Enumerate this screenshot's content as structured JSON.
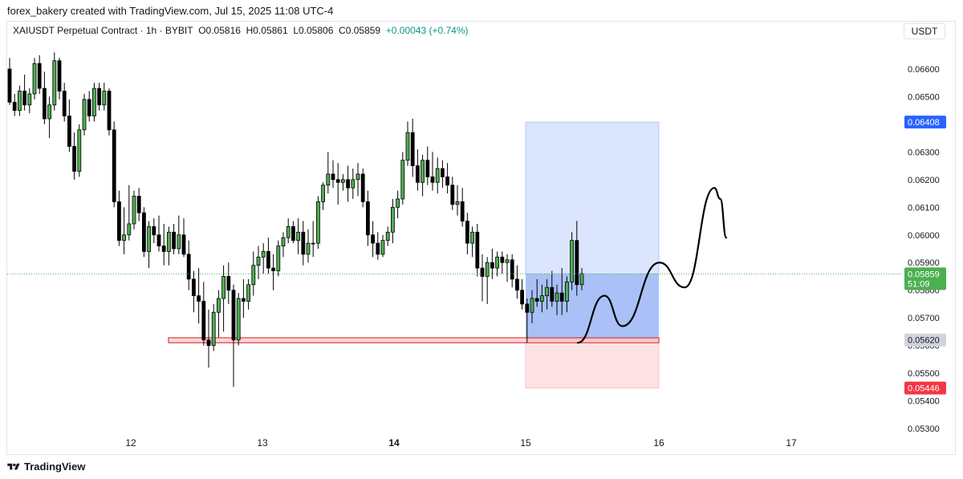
{
  "caption": "forex_bakery created with TradingView.com, Jul 15, 2025 11:08 UTC-4",
  "legend": {
    "symbol": "XAIUSDT Perpetual Contract · 1h · BYBIT",
    "open": "O0.05816",
    "high": "H0.05861",
    "low": "L0.05806",
    "close": "C0.05859",
    "change": "+0.00043 (+0.74%)"
  },
  "currency": "USDT",
  "brand": "TradingView",
  "colors": {
    "up": "#4caf50",
    "down": "#000000",
    "target_zone": "#dbe5fd",
    "entry_zone": "#a9c1f7",
    "stop_zone": "#fde2e4",
    "support_box": "#f7c7cc",
    "support_border": "#e53935",
    "last_price": "#4caf50",
    "target_tag": "#2962ff",
    "stop_tag": "#f23645",
    "entry_tag": "#d1d4dc"
  },
  "chart_data": {
    "type": "candlestick",
    "ylim": [
      0.0525,
      0.0671
    ],
    "price_axis": [
      "0.06600",
      "0.06500",
      "0.06300",
      "0.06200",
      "0.06100",
      "0.06000",
      "0.05900",
      "0.05800",
      "0.05700",
      "0.05600",
      "0.05500",
      "0.05400",
      "0.05300"
    ],
    "x_labels": [
      {
        "label": "12",
        "bold": false
      },
      {
        "label": "13",
        "bold": false
      },
      {
        "label": "14",
        "bold": true
      },
      {
        "label": "15",
        "bold": false
      },
      {
        "label": "16",
        "bold": false
      },
      {
        "label": "17",
        "bold": false
      }
    ],
    "candles_ohlc": [
      [
        0.066,
        0.0664,
        0.0647,
        0.0648
      ],
      [
        0.0648,
        0.0651,
        0.0643,
        0.0645
      ],
      [
        0.0645,
        0.0654,
        0.0643,
        0.0652
      ],
      [
        0.0652,
        0.0658,
        0.0645,
        0.0647
      ],
      [
        0.0647,
        0.0653,
        0.0644,
        0.0651
      ],
      [
        0.0651,
        0.0664,
        0.0649,
        0.0662
      ],
      [
        0.0662,
        0.0665,
        0.0651,
        0.0653
      ],
      [
        0.0653,
        0.0659,
        0.064,
        0.0642
      ],
      [
        0.0642,
        0.065,
        0.0635,
        0.0647
      ],
      [
        0.0647,
        0.0666,
        0.0645,
        0.0663
      ],
      [
        0.0663,
        0.0664,
        0.0649,
        0.0652
      ],
      [
        0.0652,
        0.0655,
        0.0641,
        0.0643
      ],
      [
        0.0643,
        0.0649,
        0.063,
        0.0632
      ],
      [
        0.0632,
        0.0637,
        0.062,
        0.0623
      ],
      [
        0.0623,
        0.064,
        0.0621,
        0.0638
      ],
      [
        0.0638,
        0.0651,
        0.0636,
        0.0649
      ],
      [
        0.0649,
        0.0652,
        0.0641,
        0.0643
      ],
      [
        0.0643,
        0.0655,
        0.0641,
        0.0653
      ],
      [
        0.0653,
        0.0655,
        0.0645,
        0.0647
      ],
      [
        0.0647,
        0.0655,
        0.0645,
        0.0652
      ],
      [
        0.0652,
        0.0653,
        0.0636,
        0.0638
      ],
      [
        0.0638,
        0.0641,
        0.061,
        0.0612
      ],
      [
        0.0612,
        0.0616,
        0.0596,
        0.0598
      ],
      [
        0.0598,
        0.061,
        0.0593,
        0.06
      ],
      [
        0.06,
        0.0618,
        0.0598,
        0.0604
      ],
      [
        0.0604,
        0.0616,
        0.0602,
        0.0614
      ],
      [
        0.0614,
        0.0617,
        0.0605,
        0.0608
      ],
      [
        0.0608,
        0.061,
        0.0592,
        0.0594
      ],
      [
        0.0594,
        0.0605,
        0.0588,
        0.0603
      ],
      [
        0.0603,
        0.0606,
        0.0597,
        0.06
      ],
      [
        0.06,
        0.0607,
        0.0594,
        0.0596
      ],
      [
        0.0596,
        0.0604,
        0.0589,
        0.0594
      ],
      [
        0.0594,
        0.0603,
        0.0589,
        0.0601
      ],
      [
        0.0601,
        0.0604,
        0.0593,
        0.0595
      ],
      [
        0.0595,
        0.0607,
        0.0593,
        0.06
      ],
      [
        0.06,
        0.0606,
        0.0592,
        0.0593
      ],
      [
        0.0593,
        0.0598,
        0.058,
        0.0584
      ],
      [
        0.0584,
        0.0587,
        0.0572,
        0.0578
      ],
      [
        0.0578,
        0.0588,
        0.0568,
        0.0576
      ],
      [
        0.0576,
        0.0583,
        0.056,
        0.0562
      ],
      [
        0.0562,
        0.0573,
        0.0552,
        0.056
      ],
      [
        0.056,
        0.0575,
        0.0558,
        0.0572
      ],
      [
        0.0572,
        0.058,
        0.0563,
        0.0577
      ],
      [
        0.0577,
        0.0589,
        0.0565,
        0.0585
      ],
      [
        0.0585,
        0.059,
        0.0575,
        0.058
      ],
      [
        0.058,
        0.0582,
        0.0545,
        0.0562
      ],
      [
        0.0562,
        0.0579,
        0.056,
        0.0577
      ],
      [
        0.0577,
        0.0584,
        0.057,
        0.0576
      ],
      [
        0.0576,
        0.0584,
        0.0573,
        0.0582
      ],
      [
        0.0582,
        0.0594,
        0.0578,
        0.0589
      ],
      [
        0.0589,
        0.0596,
        0.0584,
        0.0592
      ],
      [
        0.0592,
        0.0597,
        0.0586,
        0.0594
      ],
      [
        0.0594,
        0.0599,
        0.0586,
        0.0588
      ],
      [
        0.0588,
        0.0593,
        0.058,
        0.0587
      ],
      [
        0.0587,
        0.0598,
        0.0585,
        0.0596
      ],
      [
        0.0596,
        0.0601,
        0.0592,
        0.0599
      ],
      [
        0.0599,
        0.0606,
        0.0597,
        0.0603
      ],
      [
        0.0603,
        0.0605,
        0.0597,
        0.0598
      ],
      [
        0.0598,
        0.0606,
        0.0593,
        0.0601
      ],
      [
        0.0601,
        0.0605,
        0.0589,
        0.0593
      ],
      [
        0.0593,
        0.0602,
        0.059,
        0.0597
      ],
      [
        0.0597,
        0.0605,
        0.0592,
        0.0597
      ],
      [
        0.0597,
        0.0614,
        0.0595,
        0.0612
      ],
      [
        0.0612,
        0.0619,
        0.0609,
        0.0618
      ],
      [
        0.0618,
        0.063,
        0.0615,
        0.0622
      ],
      [
        0.0622,
        0.0627,
        0.0617,
        0.062
      ],
      [
        0.062,
        0.0626,
        0.0611,
        0.0619
      ],
      [
        0.0619,
        0.0622,
        0.0616,
        0.062
      ],
      [
        0.062,
        0.0625,
        0.0612,
        0.0617
      ],
      [
        0.0617,
        0.0624,
        0.0613,
        0.062
      ],
      [
        0.062,
        0.0626,
        0.0614,
        0.0622
      ],
      [
        0.0622,
        0.0624,
        0.061,
        0.0612
      ],
      [
        0.0612,
        0.0616,
        0.0596,
        0.06
      ],
      [
        0.06,
        0.0605,
        0.0592,
        0.0597
      ],
      [
        0.0597,
        0.0601,
        0.0591,
        0.0593
      ],
      [
        0.0593,
        0.06,
        0.0592,
        0.0598
      ],
      [
        0.0598,
        0.0603,
        0.0596,
        0.0601
      ],
      [
        0.0601,
        0.0613,
        0.0597,
        0.061
      ],
      [
        0.061,
        0.0616,
        0.0606,
        0.0613
      ],
      [
        0.0613,
        0.063,
        0.0611,
        0.0627
      ],
      [
        0.0627,
        0.0641,
        0.0625,
        0.0637
      ],
      [
        0.0637,
        0.0642,
        0.0621,
        0.0625
      ],
      [
        0.0625,
        0.0631,
        0.0616,
        0.0619
      ],
      [
        0.0619,
        0.0629,
        0.0614,
        0.0627
      ],
      [
        0.0627,
        0.0632,
        0.0618,
        0.0621
      ],
      [
        0.0621,
        0.063,
        0.0616,
        0.0619
      ],
      [
        0.0619,
        0.0628,
        0.0615,
        0.0624
      ],
      [
        0.0624,
        0.0627,
        0.0617,
        0.0621
      ],
      [
        0.0621,
        0.0626,
        0.0615,
        0.0618
      ],
      [
        0.0618,
        0.0621,
        0.0609,
        0.0611
      ],
      [
        0.0611,
        0.0618,
        0.0607,
        0.0612
      ],
      [
        0.0612,
        0.0617,
        0.0603,
        0.0605
      ],
      [
        0.0605,
        0.0608,
        0.0593,
        0.0597
      ],
      [
        0.0597,
        0.0603,
        0.0592,
        0.0601
      ],
      [
        0.0601,
        0.0604,
        0.0585,
        0.0588
      ],
      [
        0.0588,
        0.0593,
        0.0576,
        0.0585
      ],
      [
        0.0585,
        0.0592,
        0.0575,
        0.059
      ],
      [
        0.059,
        0.0595,
        0.0584,
        0.0588
      ],
      [
        0.0588,
        0.0594,
        0.0585,
        0.0592
      ],
      [
        0.0592,
        0.0594,
        0.0586,
        0.059
      ],
      [
        0.059,
        0.0593,
        0.0583,
        0.0591
      ],
      [
        0.0591,
        0.0593,
        0.0581,
        0.0584
      ],
      [
        0.0584,
        0.0589,
        0.0577,
        0.058
      ],
      [
        0.058,
        0.0584,
        0.0573,
        0.0575
      ],
      [
        0.0575,
        0.0577,
        0.0561,
        0.0572
      ],
      [
        0.0572,
        0.058,
        0.0568,
        0.0577
      ],
      [
        0.0577,
        0.0584,
        0.0574,
        0.0576
      ],
      [
        0.0576,
        0.0582,
        0.0572,
        0.0578
      ],
      [
        0.0578,
        0.0584,
        0.0573,
        0.0581
      ],
      [
        0.0581,
        0.0587,
        0.0574,
        0.0576
      ],
      [
        0.0576,
        0.0582,
        0.0571,
        0.0579
      ],
      [
        0.0579,
        0.0588,
        0.0571,
        0.0576
      ],
      [
        0.0576,
        0.0585,
        0.0572,
        0.0583
      ],
      [
        0.0583,
        0.0601,
        0.058,
        0.0598
      ],
      [
        0.0598,
        0.0605,
        0.0578,
        0.0582
      ],
      [
        0.0582,
        0.0588,
        0.058,
        0.0586
      ]
    ],
    "zones": {
      "target": 0.06408,
      "entry": 0.0562,
      "stop": 0.05446,
      "support_low": 0.0561,
      "support_high": 0.05628
    },
    "last_price": "0.05859",
    "countdown": "51:09",
    "tags": {
      "target": "0.06408",
      "entry": "0.05620",
      "stop": "0.05446"
    },
    "projection_path": [
      [
        0.0561,
        0
      ],
      [
        0.0578,
        0.18
      ],
      [
        0.0567,
        0.3
      ],
      [
        0.059,
        0.55
      ],
      [
        0.0581,
        0.72
      ],
      [
        0.0617,
        0.92
      ],
      [
        0.0613,
        0.96
      ],
      [
        0.0599,
        1.0
      ]
    ]
  }
}
